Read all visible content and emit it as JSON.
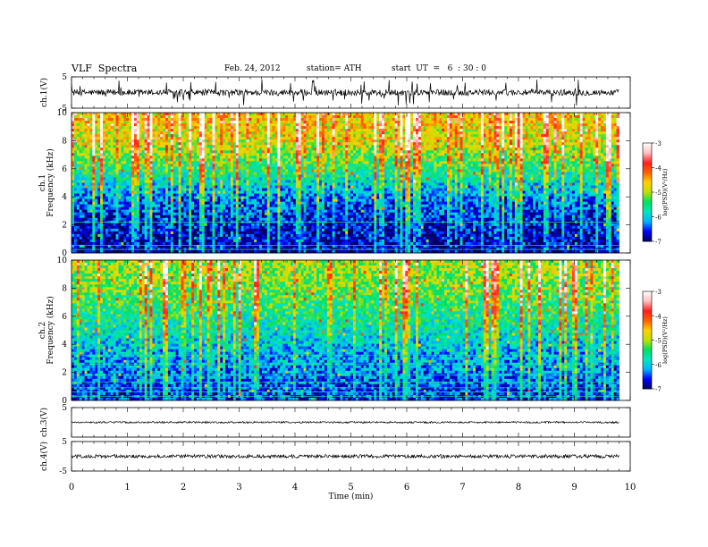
{
  "header": {
    "title": "VLF  Spectra",
    "date": "Feb. 24, 2012",
    "station": "station= ATH",
    "start": "start  UT  =   6  : 30 : 0"
  },
  "colorbar": {
    "label": "log(PSD)(V²/Hz)",
    "ticks": [
      -3,
      -4,
      -5,
      -6,
      -7
    ],
    "colors": [
      "#000060",
      "#0000ff",
      "#00b4ff",
      "#00e8c0",
      "#00e060",
      "#c0e000",
      "#ffd000",
      "#ff6000",
      "#ff2020",
      "#ffc0c0",
      "#ffffff"
    ]
  },
  "chart_data": [
    {
      "type": "line",
      "name": "ch1-waveform",
      "ylabel": "ch.1(V)",
      "ylim": [
        -5,
        5
      ],
      "yticks": [
        5,
        -5
      ],
      "xlim": [
        0,
        10
      ],
      "description_values": {
        "baseline": 0,
        "noise_amplitude": 1,
        "spike_amplitude": 3
      }
    },
    {
      "type": "heatmap",
      "name": "ch1-spectrogram",
      "ylabel_top": "ch.1",
      "ylabel": "Frequency  (kHz)",
      "ylim": [
        0,
        10
      ],
      "yticks": [
        0,
        2,
        4,
        6,
        8,
        10
      ],
      "xlim": [
        0,
        9.8
      ],
      "zlim": [
        -7,
        -3
      ],
      "zlabel": "log(PSD)(V²/Hz)",
      "level_profile_by_freq_khz": [
        [
          0,
          -6.9
        ],
        [
          2,
          -6.7
        ],
        [
          4,
          -6.3
        ],
        [
          6,
          -5.5
        ],
        [
          8,
          -4.8
        ],
        [
          10,
          -4.6
        ]
      ]
    },
    {
      "type": "heatmap",
      "name": "ch2-spectrogram",
      "ylabel_top": "ch.2",
      "ylabel": "Frequency  (kHz)",
      "ylim": [
        0,
        10
      ],
      "yticks": [
        0,
        2,
        4,
        6,
        8,
        10
      ],
      "xlim": [
        0,
        9.8
      ],
      "zlim": [
        -7,
        -3
      ],
      "zlabel": "log(PSD)(V²/Hz)",
      "level_profile_by_freq_khz": [
        [
          0,
          -6.6
        ],
        [
          2,
          -6.3
        ],
        [
          4,
          -6.0
        ],
        [
          6,
          -5.6
        ],
        [
          8,
          -5.2
        ],
        [
          10,
          -5.0
        ]
      ]
    },
    {
      "type": "line",
      "name": "ch3-waveform",
      "ylabel": "ch.3(V)",
      "ylim": [
        -5,
        5
      ],
      "yticks": [
        5
      ],
      "xlim": [
        0,
        10
      ],
      "description_values": {
        "baseline": 0,
        "noise_amplitude": 0.3
      }
    },
    {
      "type": "line",
      "name": "ch4-waveform",
      "ylabel": "ch.4(V)",
      "ylim": [
        -5,
        5
      ],
      "yticks": [
        5,
        -5
      ],
      "xlim": [
        0,
        10
      ],
      "description_values": {
        "baseline": 0,
        "noise_amplitude": 0.6
      }
    }
  ],
  "xaxis": {
    "label": "Time  (min)",
    "ticks": [
      0,
      1,
      2,
      3,
      4,
      5,
      6,
      7,
      8,
      9,
      10
    ],
    "xlim": [
      0,
      10
    ]
  }
}
